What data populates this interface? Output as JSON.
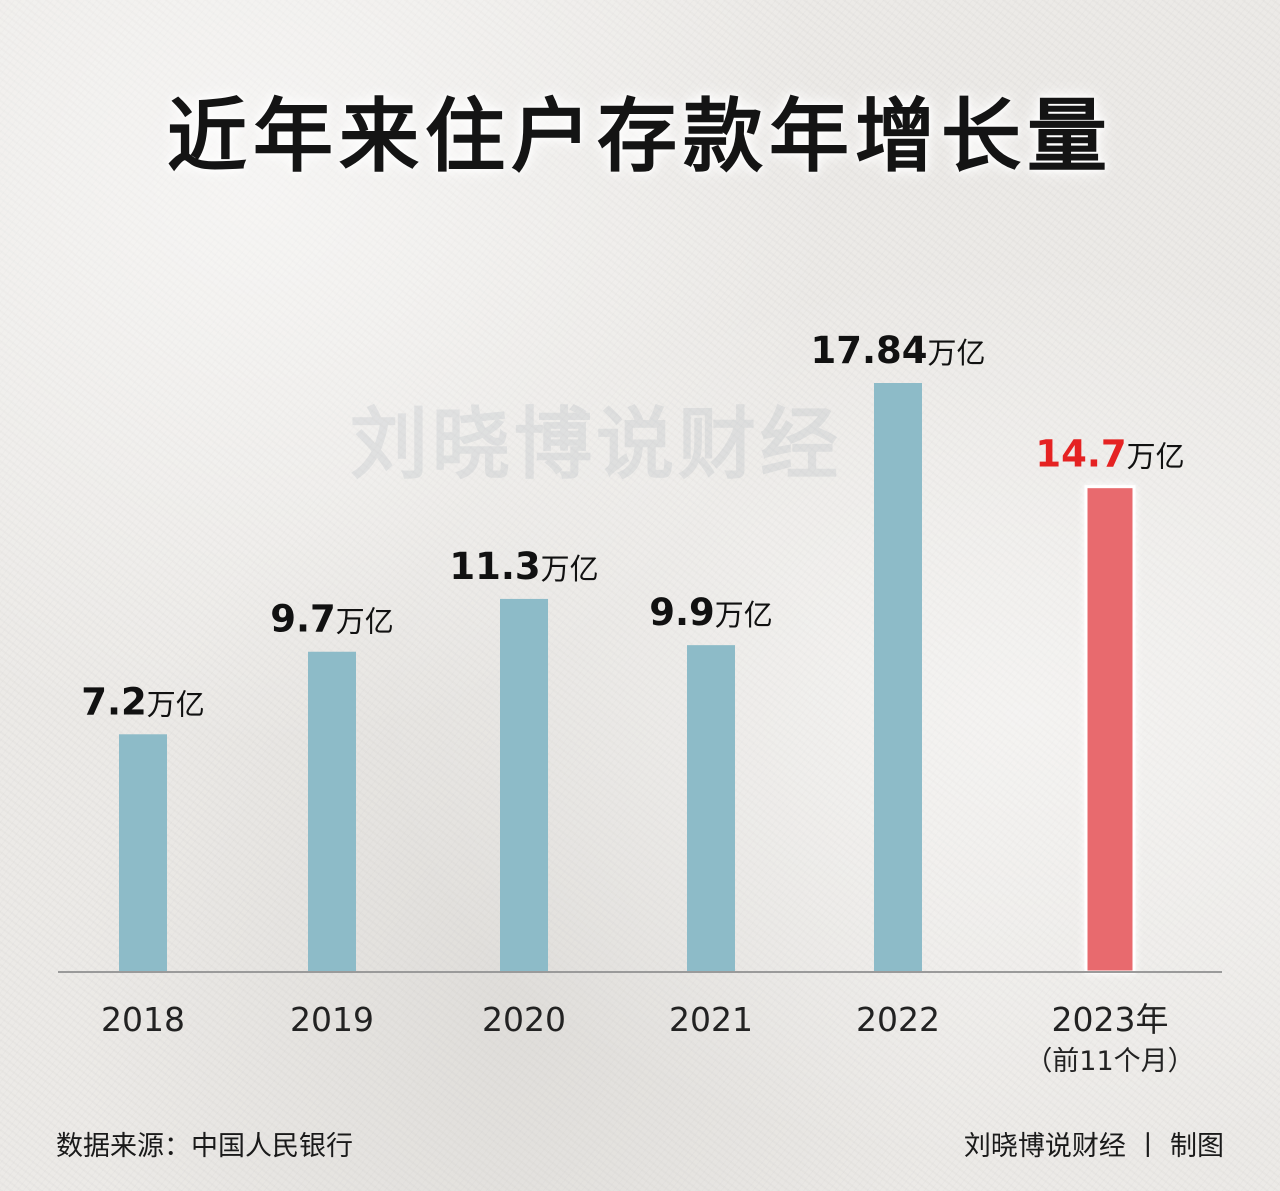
{
  "header": {
    "title": "近年来住户存款年增长量"
  },
  "watermark": {
    "text": "刘晓博说财经"
  },
  "chart_data": {
    "type": "bar",
    "unit": "万亿",
    "categories": [
      "2018",
      "2019",
      "2020",
      "2021",
      "2022",
      "2023年"
    ],
    "category_notes": [
      "",
      "",
      "",
      "",
      "",
      "（前11个月）"
    ],
    "values": [
      7.2,
      9.7,
      11.3,
      9.9,
      17.84,
      14.7
    ],
    "value_labels": [
      "7.2",
      "9.7",
      "11.3",
      "9.9",
      "17.84",
      "14.7"
    ],
    "highlight_index": 5,
    "colors": {
      "bar": "#8dbbc8",
      "highlight_bar": "#e86b6e",
      "label": "#111111",
      "highlight_label": "#e52222",
      "axis": "#9a9a9a"
    },
    "ylim": [
      0,
      17.84
    ],
    "grid": false,
    "legend": "none"
  },
  "footer": {
    "source": "数据来源：中国人民银行",
    "credit": "刘晓博说财经 丨 制图"
  }
}
